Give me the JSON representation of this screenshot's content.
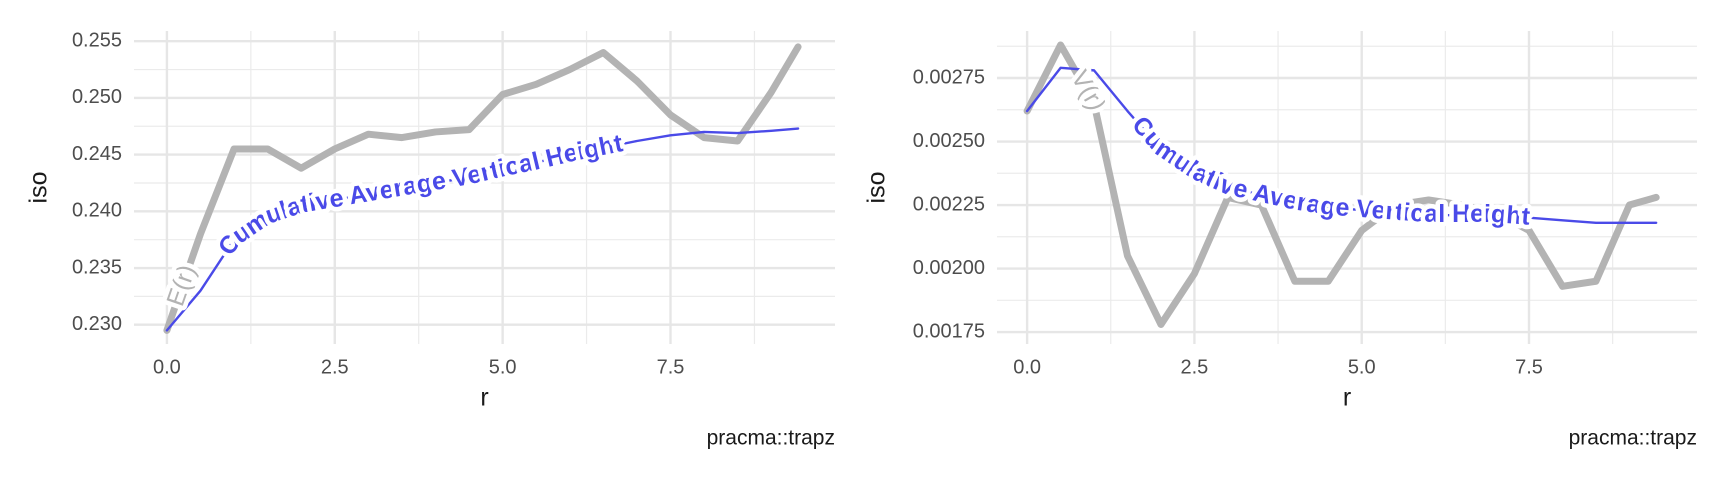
{
  "chart_data": [
    {
      "type": "line",
      "x_label": "r",
      "y_label": "iso",
      "caption": "pracma::trapz",
      "x": [
        0,
        0.5,
        1,
        1.5,
        2,
        2.5,
        3,
        3.5,
        4,
        4.5,
        5,
        5.5,
        6,
        6.5,
        7,
        7.5,
        8,
        8.5,
        9,
        9.4
      ],
      "series": [
        {
          "name": "E(r)",
          "color": "#b3b3b3",
          "values": [
            0.2295,
            0.238,
            0.2455,
            0.2455,
            0.2438,
            0.2455,
            0.2468,
            0.2465,
            0.247,
            0.2472,
            0.2503,
            0.2512,
            0.2525,
            0.254,
            0.2515,
            0.2485,
            0.2465,
            0.2462,
            0.2505,
            0.2545
          ]
        },
        {
          "name": "Cumulative Average Vertical Height",
          "color": "#4a4ae8",
          "values": [
            0.2295,
            0.233,
            0.2375,
            0.2395,
            0.2405,
            0.241,
            0.2415,
            0.242,
            0.2425,
            0.243,
            0.2437,
            0.2443,
            0.245,
            0.2456,
            0.2462,
            0.2467,
            0.247,
            0.2469,
            0.2471,
            0.2473
          ]
        }
      ],
      "xlim": [
        -0.49,
        9.95
      ],
      "ylim": [
        0.2283,
        0.2559
      ],
      "xticks": [
        {
          "value": 0,
          "label": "0.0"
        },
        2.5,
        {
          "value": 5,
          "label": "5.0"
        },
        7.5
      ],
      "yticks": [
        {
          "value": 0.23,
          "label": "0.230"
        },
        0.235,
        {
          "value": 0.24,
          "label": "0.240"
        },
        0.245,
        {
          "value": 0.25,
          "label": "0.250"
        },
        0.255
      ],
      "minor_xticks": [
        1.25,
        3.75,
        6.25,
        8.75
      ],
      "minor_yticks": [
        0.2325,
        0.2375,
        0.2425,
        0.2475,
        0.2525
      ],
      "grid": true
    },
    {
      "type": "line",
      "x_label": "r",
      "y_label": "iso",
      "caption": "pracma::trapz",
      "x": [
        0,
        0.5,
        1,
        1.5,
        2,
        2.5,
        3,
        3.5,
        4,
        4.5,
        5,
        5.5,
        6,
        6.5,
        7,
        7.5,
        8,
        8.5,
        9,
        9.4
      ],
      "series": [
        {
          "name": "V(r)",
          "color": "#b3b3b3",
          "values": [
            0.00262,
            0.00288,
            0.00265,
            0.00205,
            0.00178,
            0.00198,
            0.00228,
            0.00225,
            0.00195,
            0.00195,
            0.00215,
            0.00225,
            0.00227,
            0.00225,
            0.00222,
            0.00215,
            0.00193,
            0.00195,
            0.00225,
            0.00228
          ]
        },
        {
          "name": "Cumulative Average Vertical Height",
          "color": "#4a4ae8",
          "values": [
            0.00262,
            0.00279,
            0.00278,
            0.00262,
            0.00247,
            0.00238,
            0.00232,
            0.00229,
            0.00226,
            0.00224,
            0.00223,
            0.00222,
            0.00221,
            0.00221,
            0.00221,
            0.0022,
            0.00219,
            0.00218,
            0.00218,
            0.00218
          ]
        }
      ],
      "xlim": [
        -0.45,
        10.01
      ],
      "ylim": [
        0.001703,
        0.002935
      ],
      "xticks": [
        {
          "value": 0,
          "label": "0.0"
        },
        2.5,
        {
          "value": 5,
          "label": "5.0"
        },
        7.5
      ],
      "yticks": [
        0.00175,
        {
          "value": 0.002,
          "label": "0.00200"
        },
        0.00225,
        {
          "value": 0.0025,
          "label": "0.00250"
        },
        0.00275
      ],
      "minor_xticks": [
        1.25,
        3.75,
        6.25,
        8.75
      ],
      "minor_yticks": [
        0.001875,
        0.002125,
        0.002375,
        0.002625,
        0.002875
      ],
      "grid": true
    }
  ]
}
